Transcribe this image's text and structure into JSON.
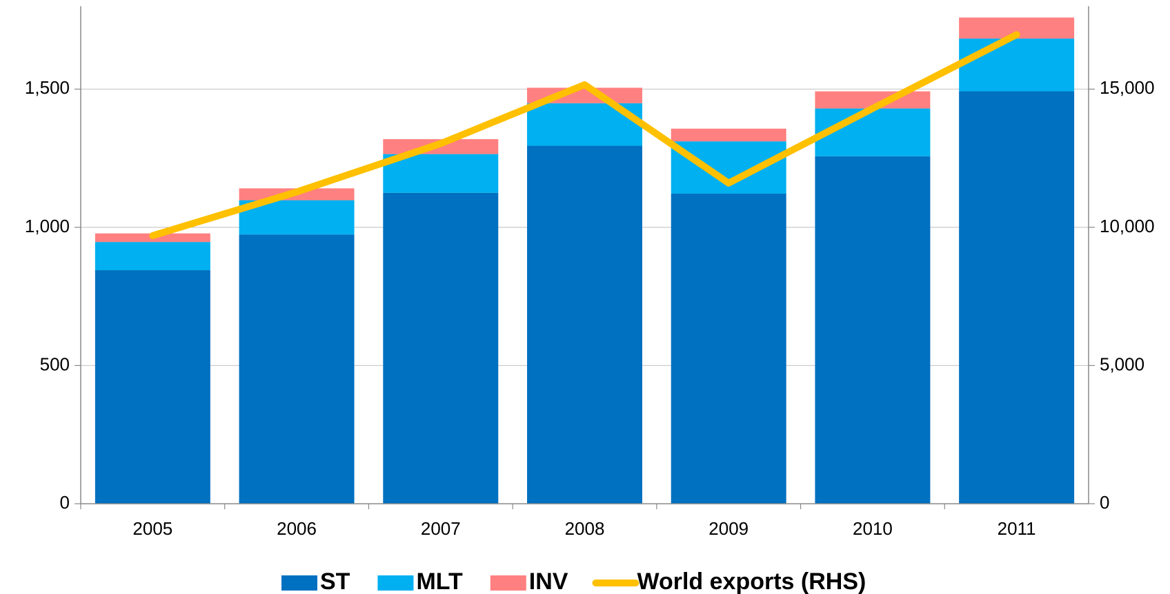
{
  "chart_data": {
    "type": "bar",
    "stacked": true,
    "categories": [
      "2005",
      "2006",
      "2007",
      "2008",
      "2009",
      "2010",
      "2011"
    ],
    "series": [
      {
        "name": "ST",
        "color": "#0070c0",
        "values": [
          845,
          974,
          1125,
          1295,
          1122,
          1257,
          1492
        ]
      },
      {
        "name": "MLT",
        "color": "#00b0f0",
        "values": [
          102,
          124,
          140,
          154,
          189,
          173,
          191
        ]
      },
      {
        "name": "INV",
        "color": "#ff8080",
        "values": [
          31,
          43,
          54,
          56,
          46,
          62,
          76
        ]
      },
      {
        "name": "World exports (RHS)",
        "color": "#ffc000",
        "type": "line",
        "axis": "y2",
        "values": [
          9700,
          11280,
          13030,
          15160,
          11600,
          14300,
          16970
        ]
      }
    ],
    "ylim": [
      0,
      1800
    ],
    "yticks": [
      0,
      500,
      {
        "value": 1000,
        "label": "1,000"
      },
      {
        "value": 1500,
        "label": "1,500"
      }
    ],
    "y2lim": [
      0,
      18000
    ],
    "y2ticks": [
      0,
      {
        "value": 5000,
        "label": "5,000"
      },
      {
        "value": 10000,
        "label": "10,000"
      },
      {
        "value": 15000,
        "label": "15,000"
      }
    ],
    "grid": true,
    "legend": "bottom"
  }
}
